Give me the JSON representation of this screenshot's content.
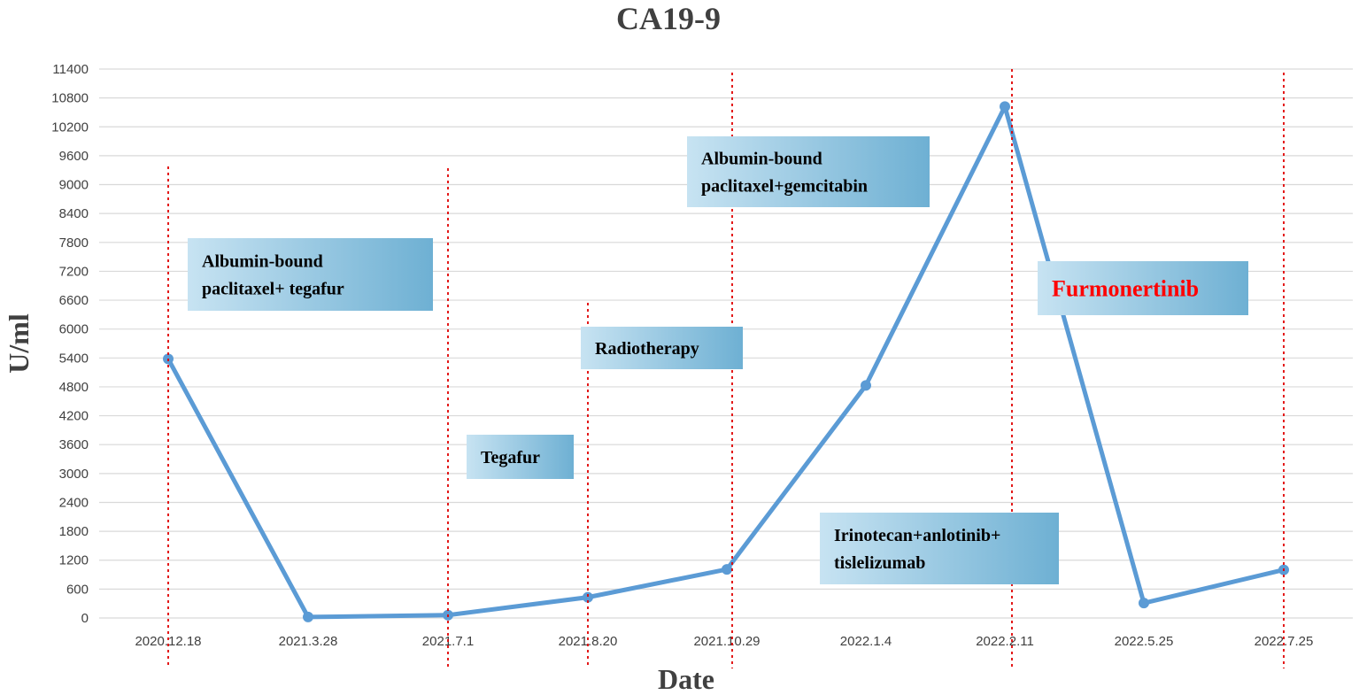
{
  "chart_data": {
    "type": "line",
    "title": "CA19-9",
    "xlabel": "Date",
    "ylabel": "U/ml",
    "categories": [
      "2020.12.18",
      "2021.3.28",
      "2021.7.1",
      "2021.8.20",
      "2021.10.29",
      "2022.1.4",
      "2022.2.11",
      "2022.5.25",
      "2022.7.25"
    ],
    "series": [
      {
        "values": [
          5380,
          20,
          60,
          430,
          1010,
          4830,
          10620,
          310,
          1000
        ]
      }
    ],
    "ylim": [
      0,
      11400
    ],
    "yticks": [
      0,
      600,
      1200,
      1800,
      2400,
      3000,
      3600,
      4200,
      4800,
      5400,
      6000,
      6600,
      7200,
      7800,
      8400,
      9000,
      9600,
      10200,
      10800,
      11400
    ],
    "grid": true,
    "treatment_markers": [
      "2020.12.18",
      "2021.7.1",
      "2021.8.20",
      "2021.10.29",
      "2022.2.11",
      "2022.7.25"
    ],
    "annotations": [
      {
        "lines": [
          "Albumin-bound",
          "paclitaxel+ tegafur"
        ],
        "highlight": false
      },
      {
        "lines": [
          "Tegafur"
        ],
        "highlight": false
      },
      {
        "lines": [
          "Radiotherapy"
        ],
        "highlight": false
      },
      {
        "lines": [
          "Albumin-bound",
          "paclitaxel+gemcitabin"
        ],
        "highlight": false
      },
      {
        "lines": [
          "Irinotecan+anlotinib+",
          "tislelizumab"
        ],
        "highlight": false
      },
      {
        "lines": [
          "Furmonertinib"
        ],
        "highlight": true
      }
    ],
    "colors": {
      "series": "#5b9bd5",
      "marker": "#e00000",
      "highlight_text": "#ff0000",
      "box_light": "#c3e0f0",
      "box_dark": "#6fb1d4"
    }
  }
}
